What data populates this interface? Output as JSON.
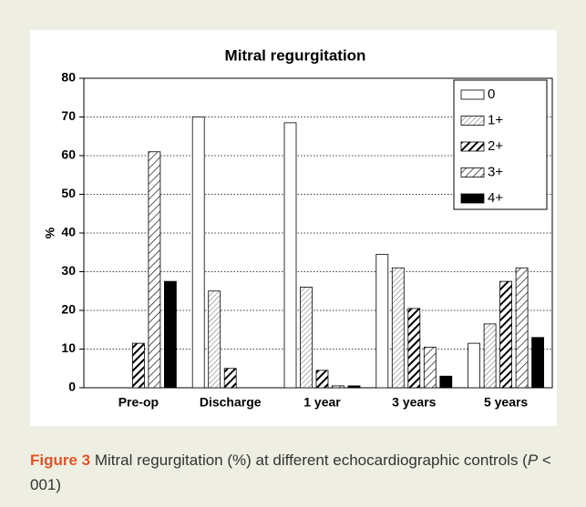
{
  "chart_data": {
    "type": "bar",
    "title": "Mitral regurgitation",
    "y_label": "%",
    "categories": [
      "Pre-op",
      "Discharge",
      "1 year",
      "3 years",
      "5 years"
    ],
    "series": [
      {
        "name": "0",
        "color": "#ffffff",
        "hatch": "none",
        "values": [
          0,
          70,
          68.5,
          34.5,
          11.5
        ]
      },
      {
        "name": "1+",
        "color": "#ffffff",
        "hatch": "thin-dense",
        "values": [
          0,
          25,
          26,
          31,
          16.5
        ]
      },
      {
        "name": "2+",
        "color": "#ffffff",
        "hatch": "bold",
        "values": [
          11.5,
          5,
          4.5,
          20.5,
          27.5
        ]
      },
      {
        "name": "3+",
        "color": "#ffffff",
        "hatch": "thin",
        "values": [
          61,
          0,
          0.5,
          10.5,
          31
        ]
      },
      {
        "name": "4+",
        "color": "#000000",
        "hatch": "none",
        "values": [
          27.5,
          0,
          0.5,
          3,
          13
        ]
      }
    ],
    "ylim": [
      0,
      80
    ],
    "yticks": [
      0,
      10,
      20,
      30,
      40,
      50,
      60,
      70,
      80
    ],
    "grid": true,
    "legend": "top-right"
  },
  "caption": {
    "label": "Figure 3",
    "text_before": "Mitral regurgitation (%) at different echocardiographic controls (",
    "italic": "P",
    "text_after": " < 001)"
  }
}
